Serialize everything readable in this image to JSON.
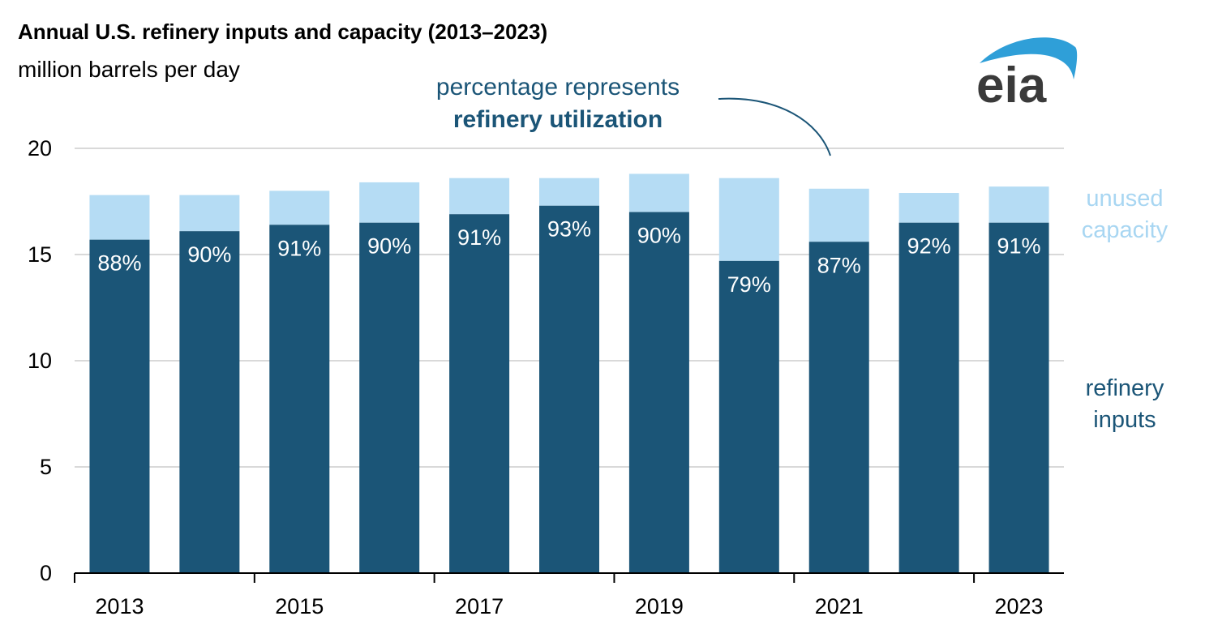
{
  "chart_data": {
    "type": "bar",
    "stacked": true,
    "title": "Annual U.S. refinery inputs and capacity (2013–2023)",
    "ylabel": "million barrels per day",
    "ylim": [
      0,
      20
    ],
    "yticks": [
      0,
      5,
      10,
      15,
      20
    ],
    "categories": [
      "2013",
      "2014",
      "2015",
      "2016",
      "2017",
      "2018",
      "2019",
      "2020",
      "2021",
      "2022",
      "2023"
    ],
    "x_tick_labels": [
      "2013",
      "2015",
      "2017",
      "2019",
      "2021",
      "2023"
    ],
    "series": [
      {
        "name": "refinery inputs",
        "color": "#1b5577",
        "values": [
          15.7,
          16.1,
          16.4,
          16.5,
          16.9,
          17.3,
          17.0,
          14.7,
          15.6,
          16.5,
          16.5
        ]
      },
      {
        "name": "unused capacity",
        "color": "#b5dcf4",
        "values": [
          2.1,
          1.7,
          1.6,
          1.9,
          1.7,
          1.3,
          1.8,
          3.9,
          2.5,
          1.4,
          1.7
        ]
      }
    ],
    "total_capacity": [
      17.8,
      17.8,
      18.0,
      18.4,
      18.6,
      18.6,
      18.8,
      18.6,
      18.1,
      17.9,
      18.2
    ],
    "utilization_labels": [
      "88%",
      "90%",
      "91%",
      "90%",
      "91%",
      "93%",
      "90%",
      "79%",
      "87%",
      "92%",
      "91%"
    ],
    "annotation": {
      "line1": "percentage represents",
      "line2": "refinery utilization"
    },
    "legend": {
      "unused_line1": "unused",
      "unused_line2": "capacity",
      "inputs_line1": "refinery",
      "inputs_line2": "inputs"
    },
    "grid": true
  },
  "colors": {
    "inputs": "#1b5577",
    "unused": "#b5dcf4",
    "grid": "#d9d9d9",
    "logo_blue": "#2f9fd8",
    "logo_text": "#3a3a3a"
  },
  "logo": {
    "text": "eia"
  }
}
